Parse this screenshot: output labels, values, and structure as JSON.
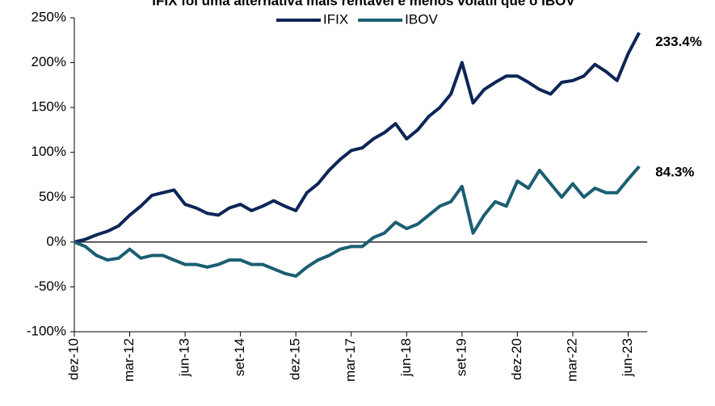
{
  "chart_data": {
    "type": "line",
    "title": "IFIX foi uma alternativa mais rentável e menos volátil que o IBOV",
    "categories": [
      "dez-10",
      null,
      null,
      null,
      null,
      "mar-12",
      null,
      null,
      null,
      null,
      "jun-13",
      null,
      null,
      null,
      null,
      "set-14",
      null,
      null,
      null,
      null,
      "dez-15",
      null,
      null,
      null,
      null,
      "mar-17",
      null,
      null,
      null,
      null,
      "jun-18",
      null,
      null,
      null,
      null,
      "set-19",
      null,
      null,
      null,
      null,
      "dez-20",
      null,
      null,
      null,
      null,
      "mar-22",
      null,
      null,
      null,
      null,
      "jun-23",
      null
    ],
    "series": [
      {
        "name": "IFIX",
        "color": "#0d2557",
        "values": [
          0,
          3,
          8,
          12,
          18,
          30,
          40,
          52,
          55,
          58,
          42,
          38,
          32,
          30,
          38,
          42,
          35,
          40,
          46,
          40,
          35,
          55,
          65,
          80,
          92,
          102,
          105,
          115,
          122,
          132,
          115,
          125,
          140,
          150,
          165,
          200,
          155,
          170,
          178,
          185,
          185,
          178,
          170,
          165,
          178,
          180,
          185,
          198,
          190,
          180,
          210,
          233.4
        ],
        "value_labels": [
          null,
          null,
          null,
          null,
          null,
          null,
          null,
          null,
          null,
          null,
          null,
          null,
          null,
          null,
          null,
          null,
          null,
          null,
          null,
          null,
          null,
          null,
          null,
          null,
          null,
          null,
          null,
          null,
          null,
          null,
          null,
          null,
          null,
          null,
          null,
          null,
          null,
          null,
          null,
          null,
          null,
          null,
          null,
          null,
          null,
          null,
          null,
          null,
          null,
          null,
          null,
          "233.4%"
        ]
      },
      {
        "name": "IBOV",
        "color": "#1b5e72",
        "values": [
          0,
          -5,
          -15,
          -20,
          -18,
          -8,
          -18,
          -15,
          -15,
          -20,
          -25,
          -25,
          -28,
          -25,
          -20,
          -20,
          -25,
          -25,
          -30,
          -35,
          -38,
          -28,
          -20,
          -15,
          -8,
          -5,
          -5,
          5,
          10,
          22,
          15,
          20,
          30,
          40,
          45,
          62,
          10,
          30,
          45,
          40,
          68,
          60,
          80,
          65,
          50,
          65,
          50,
          60,
          55,
          55,
          70,
          84.3
        ],
        "value_labels": [
          null,
          null,
          null,
          null,
          null,
          null,
          null,
          null,
          null,
          null,
          null,
          null,
          null,
          null,
          null,
          null,
          null,
          null,
          null,
          null,
          null,
          null,
          null,
          null,
          null,
          null,
          null,
          null,
          null,
          null,
          null,
          null,
          null,
          null,
          null,
          null,
          null,
          null,
          null,
          null,
          null,
          null,
          null,
          null,
          null,
          null,
          null,
          null,
          null,
          null,
          null,
          "84.3%"
        ]
      }
    ],
    "ylim": [
      -100,
      250
    ],
    "yticks": [
      {
        "value": -100,
        "label": "-100%"
      },
      {
        "value": -50,
        "label": "-50%"
      },
      {
        "value": 0,
        "label": "0%"
      },
      {
        "value": 50,
        "label": "50%"
      },
      {
        "value": 100,
        "label": "100%"
      },
      {
        "value": 150,
        "label": "150%"
      },
      {
        "value": 200,
        "label": "200%"
      },
      {
        "value": 250,
        "label": "250%"
      }
    ],
    "legend": "top"
  }
}
